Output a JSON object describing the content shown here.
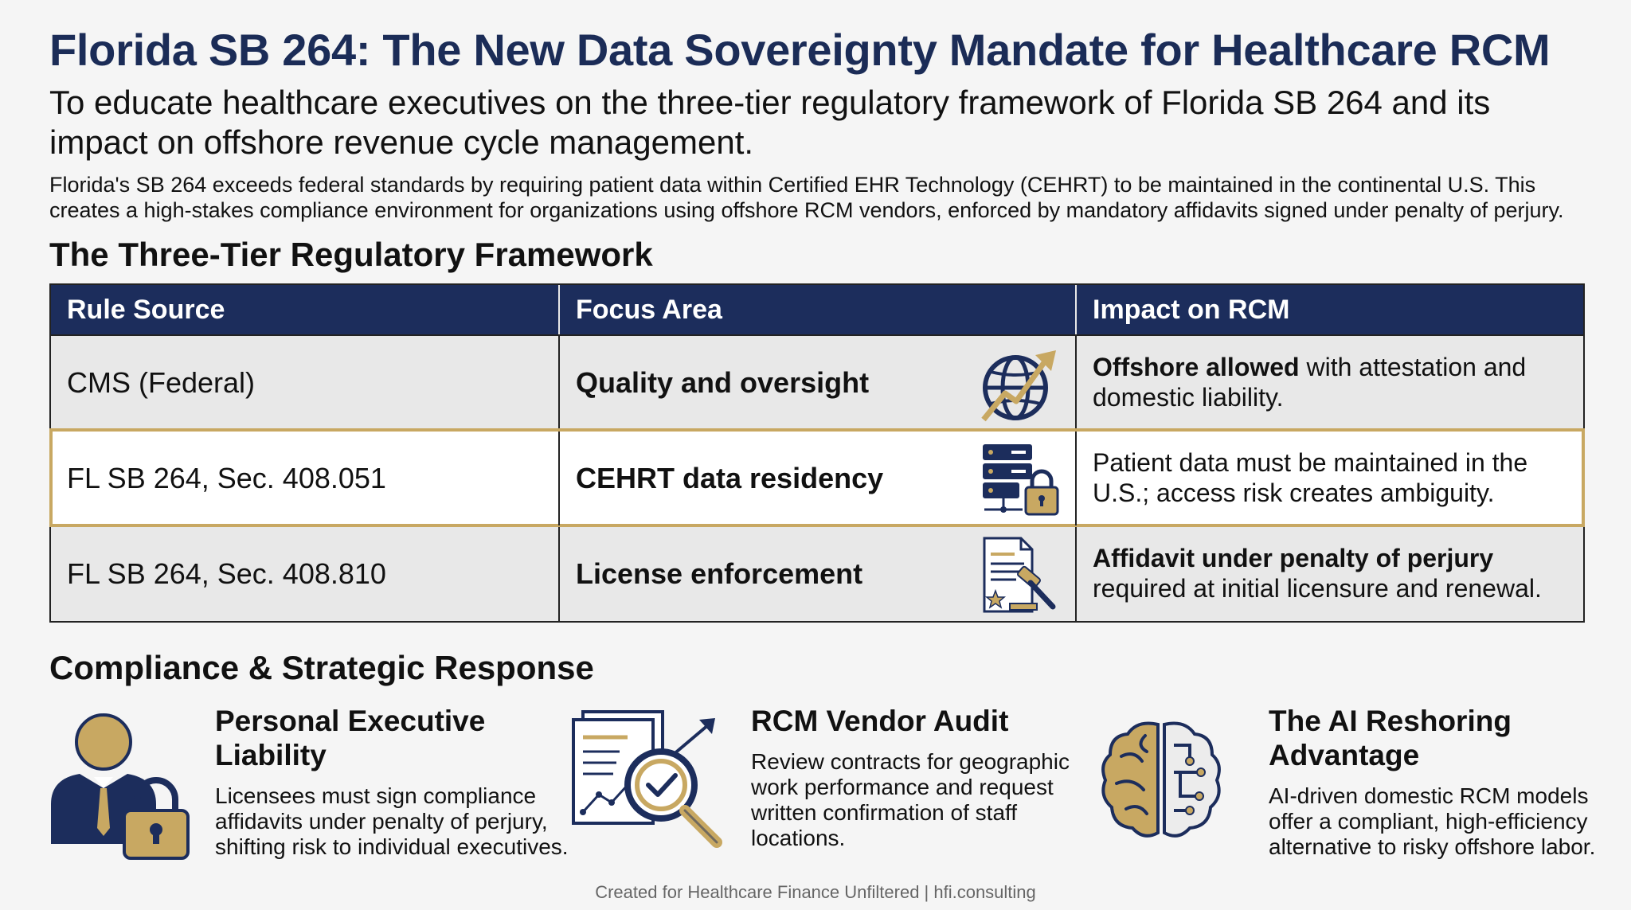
{
  "header": {
    "title": "Florida SB 264: The New Data Sovereignty Mandate for Healthcare RCM",
    "subtitle": "To educate healthcare executives on the three-tier regulatory framework of Florida SB 264 and its impact on offshore revenue cycle management.",
    "intro": "Florida's SB 264 exceeds federal standards by requiring patient data within Certified EHR Technology (CEHRT) to be maintained in the continental U.S. This creates a high-stakes compliance environment for organizations using offshore RCM vendors, enforced by mandatory affidavits signed under penalty of perjury."
  },
  "framework": {
    "title": "The Three-Tier Regulatory Framework",
    "columns": [
      "Rule Source",
      "Focus Area",
      "Impact on RCM"
    ],
    "rows": [
      {
        "source": "CMS (Federal)",
        "focus": "Quality and oversight",
        "icon": "globe-arrow-icon",
        "impact_bold": "Offshore allowed",
        "impact_rest": " with attestation and domestic liability."
      },
      {
        "source": "FL SB 264, Sec. 408.051",
        "focus": "CEHRT data residency",
        "icon": "server-lock-icon",
        "impact_bold": "",
        "impact_rest": "Patient data must be maintained in the U.S.; access risk creates ambiguity."
      },
      {
        "source": "FL SB 264, Sec. 408.810",
        "focus": "License enforcement",
        "icon": "document-gavel-icon",
        "impact_bold": "Affidavit under penalty of perjury",
        "impact_rest": " required at initial licensure and renewal."
      }
    ]
  },
  "response": {
    "title": "Compliance & Strategic Response",
    "cards": [
      {
        "icon": "executive-lock-icon",
        "title": "Personal Executive Liability",
        "body": "Licensees must sign compliance affidavits under penalty of perjury, shifting risk to individual executives."
      },
      {
        "icon": "audit-magnifier-icon",
        "title": "RCM Vendor Audit",
        "body": "Review contracts for geographic work performance and request written confirmation of staff locations."
      },
      {
        "icon": "ai-brain-icon",
        "title": "The AI Reshoring Advantage",
        "body": "AI-driven domestic RCM models offer a compliant, high-efficiency alternative to risky offshore labor."
      }
    ]
  },
  "footer": "Created for Healthcare Finance Unfiltered | hfi.consulting",
  "colors": {
    "navy": "#1c2d5c",
    "gold": "#c8a862",
    "table_bg": "#e8e8e8"
  }
}
